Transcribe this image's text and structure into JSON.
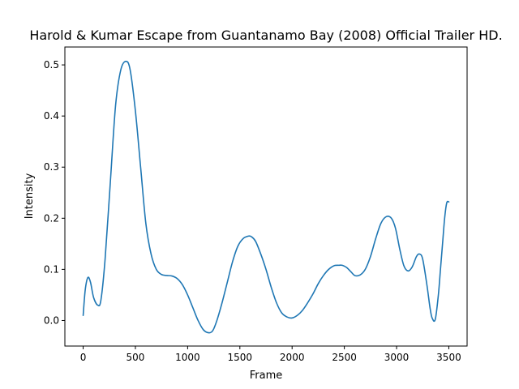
{
  "chart_data": {
    "type": "line",
    "title": "Harold & Kumar Escape from Guantanamo Bay (2008) Official Trailer HD.",
    "xlabel": "Frame",
    "ylabel": "Intensity",
    "xlim": [
      -175,
      3675
    ],
    "ylim": [
      -0.05,
      0.535
    ],
    "xticks": [
      0,
      500,
      1000,
      1500,
      2000,
      2500,
      3000,
      3500
    ],
    "yticks": [
      0.0,
      0.1,
      0.2,
      0.3,
      0.4,
      0.5
    ],
    "ytick_labels": [
      "0.0",
      "0.1",
      "0.2",
      "0.3",
      "0.4",
      "0.5"
    ],
    "grid": false,
    "line_color": "#1f77b4",
    "series": [
      {
        "x": [
          0,
          20,
          45,
          70,
          100,
          140,
          170,
          210,
          260,
          310,
          360,
          410,
          450,
          500,
          550,
          600,
          650,
          700,
          750,
          800,
          850,
          900,
          950,
          1000,
          1050,
          1100,
          1150,
          1200,
          1240,
          1280,
          1330,
          1380,
          1430,
          1480,
          1530,
          1580,
          1610,
          1650,
          1700,
          1750,
          1800,
          1850,
          1900,
          1950,
          2000,
          2050,
          2100,
          2150,
          2200,
          2250,
          2300,
          2350,
          2400,
          2450,
          2480,
          2520,
          2560,
          2600,
          2650,
          2700,
          2750,
          2800,
          2850,
          2900,
          2950,
          2990,
          3030,
          3070,
          3110,
          3150,
          3190,
          3220,
          3250,
          3290,
          3320,
          3340,
          3370,
          3400,
          3420,
          3440,
          3460,
          3480,
          3500
        ],
        "values": [
          0.01,
          0.06,
          0.084,
          0.075,
          0.045,
          0.03,
          0.04,
          0.12,
          0.27,
          0.42,
          0.49,
          0.507,
          0.49,
          0.41,
          0.3,
          0.19,
          0.13,
          0.1,
          0.09,
          0.088,
          0.087,
          0.082,
          0.07,
          0.05,
          0.025,
          0.0,
          -0.018,
          -0.024,
          -0.02,
          0.0,
          0.035,
          0.075,
          0.115,
          0.145,
          0.16,
          0.165,
          0.164,
          0.155,
          0.13,
          0.1,
          0.065,
          0.035,
          0.015,
          0.007,
          0.005,
          0.01,
          0.02,
          0.035,
          0.052,
          0.072,
          0.088,
          0.1,
          0.107,
          0.108,
          0.108,
          0.104,
          0.096,
          0.088,
          0.089,
          0.1,
          0.125,
          0.16,
          0.19,
          0.203,
          0.2,
          0.18,
          0.14,
          0.107,
          0.097,
          0.105,
          0.125,
          0.13,
          0.12,
          0.07,
          0.025,
          0.005,
          0.002,
          0.05,
          0.1,
          0.15,
          0.2,
          0.23,
          0.232
        ]
      }
    ]
  }
}
